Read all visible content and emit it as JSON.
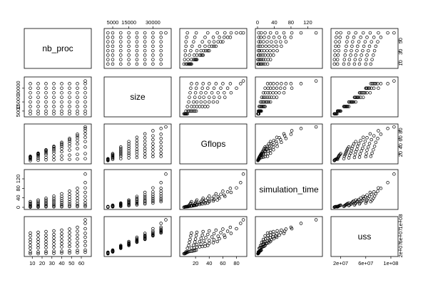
{
  "chart_data": {
    "type": "scatter",
    "layout": "pairs-matrix",
    "variables": [
      "nb_proc",
      "size",
      "Gflops",
      "simulation_time",
      "uss"
    ],
    "ranges": {
      "nb_proc": [
        4,
        68
      ],
      "size": [
        1000,
        40000
      ],
      "Gflops": [
        0,
        92
      ],
      "simulation_time": [
        0,
        150
      ],
      "uss": [
        8000000,
        108000000
      ]
    },
    "ticks": {
      "nb_proc": [
        10,
        20,
        30,
        40,
        50,
        60
      ],
      "size": [
        5000,
        15000,
        30000
      ],
      "Gflops": [
        20,
        40,
        60,
        80
      ],
      "simulation_time": [
        0,
        40,
        80,
        120
      ],
      "uss": [
        20000000,
        60000000,
        100000000
      ]
    },
    "tick_labels": {
      "nb_proc": [
        "10",
        "20",
        "30",
        "40",
        "50",
        "60"
      ],
      "size": [
        "5000",
        "15000",
        "30000"
      ],
      "Gflops": [
        "20",
        "40",
        "60",
        "80"
      ],
      "simulation_time": [
        "0",
        "40",
        "80",
        "120"
      ],
      "uss": [
        "2e+07",
        "6e+07",
        "1e+08"
      ]
    },
    "top_axis_ticks": {
      "size": [
        5000,
        15000,
        30000
      ],
      "simulation_time": [
        0,
        40,
        80,
        120
      ]
    },
    "top_axis_tick_labels": {
      "size": [
        "5000",
        "15000",
        "30000"
      ],
      "simulation_time": [
        "0",
        "40",
        "80",
        "120"
      ]
    },
    "right_axis_ticks": {
      "nb_proc": [
        10,
        30,
        50
      ],
      "Gflops": [
        20,
        40,
        60,
        80
      ],
      "uss": [
        20000000,
        60000000,
        100000000
      ]
    },
    "right_axis_tick_labels": {
      "nb_proc": [
        "10",
        "30",
        "50"
      ],
      "Gflops": [
        "20",
        "40",
        "60",
        "80"
      ],
      "uss": [
        "2e+07",
        "6e+07",
        "1e+08"
      ]
    },
    "bottom_axis_ticks": {
      "nb_proc": [
        10,
        20,
        30,
        40,
        50,
        60
      ],
      "Gflops": [
        20,
        40,
        60,
        80
      ],
      "uss": [
        20000000,
        60000000,
        100000000
      ]
    },
    "bottom_axis_tick_labels": {
      "nb_proc": [
        "10",
        "20",
        "30",
        "40",
        "50",
        "60"
      ],
      "Gflops": [
        "20",
        "40",
        "60",
        "80"
      ],
      "uss": [
        "2e+07",
        "6e+07",
        "1e+08"
      ]
    },
    "left_axis_ticks": {
      "size": [
        5000,
        15000,
        30000
      ],
      "simulation_time": [
        0,
        40,
        80,
        120
      ]
    },
    "left_axis_tick_labels": {
      "size": [
        "5000",
        "15000",
        "30000"
      ],
      "simulation_time": [
        "0",
        "40",
        "80",
        "120"
      ]
    },
    "observations": [
      {
        "nb_proc": 8,
        "size": 2000,
        "Gflops": 3,
        "simulation_time": 1,
        "uss": 10000000
      },
      {
        "nb_proc": 8,
        "size": 5000,
        "Gflops": 6,
        "simulation_time": 2,
        "uss": 15000000
      },
      {
        "nb_proc": 8,
        "size": 10000,
        "Gflops": 8,
        "simulation_time": 4,
        "uss": 25000000
      },
      {
        "nb_proc": 8,
        "size": 15000,
        "Gflops": 10,
        "simulation_time": 7,
        "uss": 33000000
      },
      {
        "nb_proc": 8,
        "size": 20000,
        "Gflops": 11,
        "simulation_time": 10,
        "uss": 42000000
      },
      {
        "nb_proc": 8,
        "size": 25000,
        "Gflops": 12,
        "simulation_time": 14,
        "uss": 50000000
      },
      {
        "nb_proc": 8,
        "size": 30000,
        "Gflops": 13,
        "simulation_time": 18,
        "uss": 60000000
      },
      {
        "nb_proc": 8,
        "size": 35000,
        "Gflops": 14,
        "simulation_time": 24,
        "uss": 68000000
      },
      {
        "nb_proc": 16,
        "size": 2000,
        "Gflops": 4,
        "simulation_time": 1,
        "uss": 10000000
      },
      {
        "nb_proc": 16,
        "size": 5000,
        "Gflops": 9,
        "simulation_time": 3,
        "uss": 15000000
      },
      {
        "nb_proc": 16,
        "size": 10000,
        "Gflops": 14,
        "simulation_time": 6,
        "uss": 26000000
      },
      {
        "nb_proc": 16,
        "size": 15000,
        "Gflops": 17,
        "simulation_time": 10,
        "uss": 34000000
      },
      {
        "nb_proc": 16,
        "size": 20000,
        "Gflops": 19,
        "simulation_time": 14,
        "uss": 43000000
      },
      {
        "nb_proc": 16,
        "size": 25000,
        "Gflops": 20,
        "simulation_time": 19,
        "uss": 51000000
      },
      {
        "nb_proc": 16,
        "size": 30000,
        "Gflops": 21,
        "simulation_time": 25,
        "uss": 61000000
      },
      {
        "nb_proc": 16,
        "size": 35000,
        "Gflops": 22,
        "simulation_time": 31,
        "uss": 70000000
      },
      {
        "nb_proc": 24,
        "size": 2000,
        "Gflops": 5,
        "simulation_time": 2,
        "uss": 11000000
      },
      {
        "nb_proc": 24,
        "size": 5000,
        "Gflops": 11,
        "simulation_time": 4,
        "uss": 16000000
      },
      {
        "nb_proc": 24,
        "size": 10000,
        "Gflops": 18,
        "simulation_time": 8,
        "uss": 27000000
      },
      {
        "nb_proc": 24,
        "size": 15000,
        "Gflops": 22,
        "simulation_time": 13,
        "uss": 36000000
      },
      {
        "nb_proc": 24,
        "size": 20000,
        "Gflops": 26,
        "simulation_time": 18,
        "uss": 44000000
      },
      {
        "nb_proc": 24,
        "size": 25000,
        "Gflops": 28,
        "simulation_time": 25,
        "uss": 53000000
      },
      {
        "nb_proc": 24,
        "size": 30000,
        "Gflops": 30,
        "simulation_time": 31,
        "uss": 62000000
      },
      {
        "nb_proc": 24,
        "size": 35000,
        "Gflops": 31,
        "simulation_time": 38,
        "uss": 72000000
      },
      {
        "nb_proc": 32,
        "size": 2000,
        "Gflops": 5,
        "simulation_time": 2,
        "uss": 11000000
      },
      {
        "nb_proc": 32,
        "size": 5000,
        "Gflops": 13,
        "simulation_time": 5,
        "uss": 17000000
      },
      {
        "nb_proc": 32,
        "size": 10000,
        "Gflops": 22,
        "simulation_time": 10,
        "uss": 28000000
      },
      {
        "nb_proc": 32,
        "size": 15000,
        "Gflops": 28,
        "simulation_time": 16,
        "uss": 37000000
      },
      {
        "nb_proc": 32,
        "size": 20000,
        "Gflops": 32,
        "simulation_time": 23,
        "uss": 46000000
      },
      {
        "nb_proc": 32,
        "size": 25000,
        "Gflops": 35,
        "simulation_time": 30,
        "uss": 55000000
      },
      {
        "nb_proc": 32,
        "size": 30000,
        "Gflops": 38,
        "simulation_time": 38,
        "uss": 64000000
      },
      {
        "nb_proc": 32,
        "size": 35000,
        "Gflops": 40,
        "simulation_time": 47,
        "uss": 74000000
      },
      {
        "nb_proc": 40,
        "size": 2000,
        "Gflops": 6,
        "simulation_time": 2,
        "uss": 12000000
      },
      {
        "nb_proc": 40,
        "size": 5000,
        "Gflops": 15,
        "simulation_time": 6,
        "uss": 17000000
      },
      {
        "nb_proc": 40,
        "size": 10000,
        "Gflops": 26,
        "simulation_time": 12,
        "uss": 29000000
      },
      {
        "nb_proc": 40,
        "size": 15000,
        "Gflops": 34,
        "simulation_time": 20,
        "uss": 38000000
      },
      {
        "nb_proc": 40,
        "size": 20000,
        "Gflops": 40,
        "simulation_time": 28,
        "uss": 47000000
      },
      {
        "nb_proc": 40,
        "size": 25000,
        "Gflops": 44,
        "simulation_time": 37,
        "uss": 57000000
      },
      {
        "nb_proc": 40,
        "size": 30000,
        "Gflops": 47,
        "simulation_time": 46,
        "uss": 66000000
      },
      {
        "nb_proc": 40,
        "size": 35000,
        "Gflops": 50,
        "simulation_time": 57,
        "uss": 76000000
      },
      {
        "nb_proc": 48,
        "size": 2000,
        "Gflops": 6,
        "simulation_time": 3,
        "uss": 12000000
      },
      {
        "nb_proc": 48,
        "size": 5000,
        "Gflops": 17,
        "simulation_time": 7,
        "uss": 18000000
      },
      {
        "nb_proc": 48,
        "size": 10000,
        "Gflops": 30,
        "simulation_time": 14,
        "uss": 30000000
      },
      {
        "nb_proc": 48,
        "size": 15000,
        "Gflops": 40,
        "simulation_time": 23,
        "uss": 39000000
      },
      {
        "nb_proc": 48,
        "size": 20000,
        "Gflops": 47,
        "simulation_time": 33,
        "uss": 49000000
      },
      {
        "nb_proc": 48,
        "size": 25000,
        "Gflops": 53,
        "simulation_time": 44,
        "uss": 59000000
      },
      {
        "nb_proc": 48,
        "size": 30000,
        "Gflops": 57,
        "simulation_time": 55,
        "uss": 69000000
      },
      {
        "nb_proc": 48,
        "size": 35000,
        "Gflops": 60,
        "simulation_time": 68,
        "uss": 79000000
      },
      {
        "nb_proc": 56,
        "size": 2000,
        "Gflops": 7,
        "simulation_time": 3,
        "uss": 13000000
      },
      {
        "nb_proc": 56,
        "size": 5000,
        "Gflops": 19,
        "simulation_time": 8,
        "uss": 19000000
      },
      {
        "nb_proc": 56,
        "size": 10000,
        "Gflops": 34,
        "simulation_time": 16,
        "uss": 31000000
      },
      {
        "nb_proc": 56,
        "size": 15000,
        "Gflops": 46,
        "simulation_time": 27,
        "uss": 41000000
      },
      {
        "nb_proc": 56,
        "size": 20000,
        "Gflops": 55,
        "simulation_time": 39,
        "uss": 52000000
      },
      {
        "nb_proc": 56,
        "size": 25000,
        "Gflops": 62,
        "simulation_time": 52,
        "uss": 62000000
      },
      {
        "nb_proc": 56,
        "size": 30000,
        "Gflops": 67,
        "simulation_time": 65,
        "uss": 73000000
      },
      {
        "nb_proc": 56,
        "size": 35000,
        "Gflops": 71,
        "simulation_time": 80,
        "uss": 84000000
      },
      {
        "nb_proc": 64,
        "size": 2000,
        "Gflops": 8,
        "simulation_time": 3,
        "uss": 14000000
      },
      {
        "nb_proc": 64,
        "size": 5000,
        "Gflops": 21,
        "simulation_time": 9,
        "uss": 20000000
      },
      {
        "nb_proc": 64,
        "size": 10000,
        "Gflops": 38,
        "simulation_time": 18,
        "uss": 33000000
      },
      {
        "nb_proc": 64,
        "size": 15000,
        "Gflops": 52,
        "simulation_time": 31,
        "uss": 44000000
      },
      {
        "nb_proc": 64,
        "size": 20000,
        "Gflops": 63,
        "simulation_time": 46,
        "uss": 56000000
      },
      {
        "nb_proc": 64,
        "size": 25000,
        "Gflops": 72,
        "simulation_time": 63,
        "uss": 67000000
      },
      {
        "nb_proc": 64,
        "size": 30000,
        "Gflops": 80,
        "simulation_time": 82,
        "uss": 80000000
      },
      {
        "nb_proc": 64,
        "size": 35000,
        "Gflops": 86,
        "simulation_time": 104,
        "uss": 95000000
      },
      {
        "nb_proc": 64,
        "size": 38000,
        "Gflops": 90,
        "simulation_time": 140,
        "uss": 105000000
      }
    ]
  }
}
